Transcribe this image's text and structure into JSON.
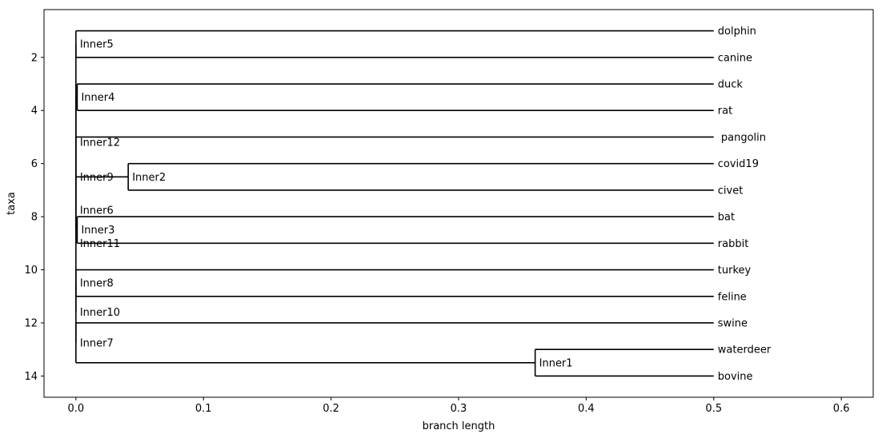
{
  "chart_data": {
    "type": "dendrogram",
    "xlabel": "branch length",
    "ylabel": "taxa",
    "xlim": [
      -0.025,
      0.625
    ],
    "ylim": [
      14.8,
      0.2
    ],
    "x_ticks": [
      0.0,
      0.1,
      0.2,
      0.3,
      0.4,
      0.5,
      0.6
    ],
    "y_ticks": [
      2,
      4,
      6,
      8,
      10,
      12,
      14
    ],
    "x_tick_labels": [
      "0.0",
      "0.1",
      "0.2",
      "0.3",
      "0.4",
      "0.5",
      "0.6"
    ],
    "y_tick_labels": [
      "2",
      "4",
      "6",
      "8",
      "10",
      "12",
      "14"
    ],
    "leaves": [
      {
        "name": "dolphin",
        "x": 0.5,
        "y": 1
      },
      {
        "name": "canine",
        "x": 0.5,
        "y": 2
      },
      {
        "name": "duck",
        "x": 0.5,
        "y": 3
      },
      {
        "name": "rat",
        "x": 0.5,
        "y": 4
      },
      {
        "name": " pangolin",
        "x": 0.5,
        "y": 5
      },
      {
        "name": "covid19",
        "x": 0.5,
        "y": 6
      },
      {
        "name": "civet",
        "x": 0.5,
        "y": 7
      },
      {
        "name": "bat",
        "x": 0.5,
        "y": 8
      },
      {
        "name": "rabbit",
        "x": 0.5,
        "y": 9
      },
      {
        "name": "turkey",
        "x": 0.5,
        "y": 10
      },
      {
        "name": "feline",
        "x": 0.5,
        "y": 11
      },
      {
        "name": "swine",
        "x": 0.5,
        "y": 12
      },
      {
        "name": "waterdeer",
        "x": 0.5,
        "y": 13
      },
      {
        "name": "bovine",
        "x": 0.5,
        "y": 14
      }
    ],
    "internal_nodes": [
      {
        "name": "Inner5",
        "x": 0.0,
        "y": 1.5,
        "children": [
          "dolphin",
          "canine"
        ]
      },
      {
        "name": "Inner4",
        "x": 0.001,
        "y": 3.5,
        "children": [
          "duck",
          "rat"
        ]
      },
      {
        "name": "Inner2",
        "x": 0.041,
        "y": 6.5,
        "children": [
          "covid19",
          "civet"
        ]
      },
      {
        "name": "Inner9",
        "x": 0.0,
        "y": 6.5,
        "children": [
          " pangolin",
          "Inner2"
        ]
      },
      {
        "name": "Inner3",
        "x": 0.001,
        "y": 8.5,
        "children": [
          "bat",
          "rabbit"
        ]
      },
      {
        "name": "Inner6",
        "x": 0.0,
        "y": 7.75,
        "children": [
          "Inner9",
          "Inner3"
        ]
      },
      {
        "name": "Inner11",
        "x": 0.0,
        "y": 9.0,
        "children": [
          "Inner4",
          "Inner6"
        ]
      },
      {
        "name": "Inner8",
        "x": 0.0,
        "y": 10.5,
        "children": [
          "turkey",
          "feline"
        ]
      },
      {
        "name": "Inner1",
        "x": 0.36,
        "y": 13.5,
        "children": [
          "waterdeer",
          "bovine"
        ]
      },
      {
        "name": "Inner7",
        "x": 0.0,
        "y": 12.75,
        "children": [
          "swine",
          "Inner1"
        ]
      },
      {
        "name": "Inner10",
        "x": 0.0,
        "y": 11.6,
        "children": [
          "Inner8",
          "Inner7"
        ]
      },
      {
        "name": "Inner12",
        "x": 0.0,
        "y": 5.2,
        "children": [
          "Inner5",
          "Inner11",
          "Inner10"
        ]
      }
    ]
  }
}
